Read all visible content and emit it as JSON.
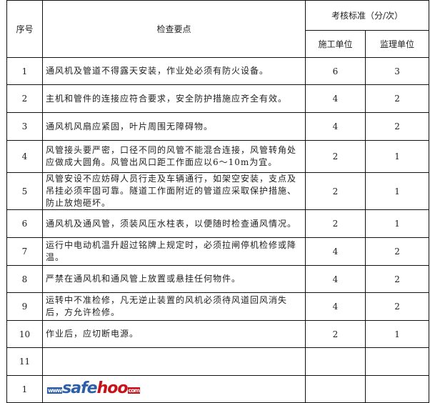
{
  "header": {
    "no": "序号",
    "points": "检查要点",
    "standard": "考核标准（分/次）",
    "construction": "施工单位",
    "supervision": "监理单位"
  },
  "rows": [
    {
      "no": "1",
      "text": "通风机及管道不得露天安装，作业处必须有防火设备。",
      "a": "6",
      "b": "3"
    },
    {
      "no": "2",
      "text": "主机和管件的连接应符合要求，安全防护措施应齐全有效。",
      "a": "4",
      "b": "2"
    },
    {
      "no": "3",
      "text": "通风机风扇应紧固，叶片周围无障碍物。",
      "a": "4",
      "b": "2"
    },
    {
      "no": "4",
      "text": "风管接头要严密，口径不同的风管不能混合连接，风管转角处应做成大圆角。风管出风口距工作面应以6～10m为宜。",
      "a": "2",
      "b": "1"
    },
    {
      "no": "5",
      "text": "风管安设不应妨碍人员行走及车辆通行，如架空安装，支点及吊挂必须牢固可靠。隧道工作面附近的管道应采取保护措施、防止放炮砸坏。",
      "a": "2",
      "b": "1"
    },
    {
      "no": "6",
      "text": "通风机及通风管，须装风压水柱表，以便随时检查通风情况。",
      "a": "2",
      "b": "1"
    },
    {
      "no": "7",
      "text": "运行中电动机温升超过铭牌上规定时，必须拉闸停机检修或降温。",
      "a": "4",
      "b": "2"
    },
    {
      "no": "8",
      "text": "严禁在通风机和通风管上放置或悬挂任何物件。",
      "a": "4",
      "b": "2"
    },
    {
      "no": "9",
      "text": "运转中不准检修，凡无逆止装置的风机必须待风道回风消失后，方允许检修。",
      "a": "4",
      "b": "2"
    },
    {
      "no": "10",
      "text": "作业后，应切断电源。",
      "a": "2",
      "b": "1"
    },
    {
      "no": "11",
      "text": "",
      "a": "",
      "b": ""
    },
    {
      "no": "1",
      "text": "",
      "a": "",
      "b": ""
    }
  ],
  "watermark": {
    "www": "www",
    "safe": "safe",
    "hoo": "hoo",
    "com": "com"
  }
}
